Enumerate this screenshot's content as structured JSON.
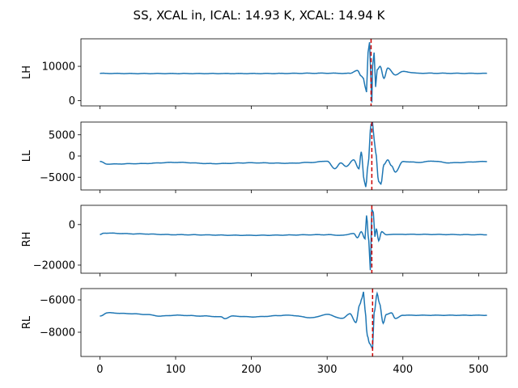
{
  "title": "SS, XCAL in, ICAL: 14.93 K, XCAL: 14.94 K",
  "chart_data": [
    {
      "type": "line",
      "ylabel": "LH",
      "xlim": [
        -25,
        537
      ],
      "ylim": [
        -1500,
        18000
      ],
      "yticks": [
        0,
        10000
      ],
      "ytick_labels": [
        "0",
        "10000"
      ],
      "baseline": 7950,
      "marker_x": 358,
      "series": [
        {
          "color": "#1f77b4",
          "keypoints": [
            [
              0,
              7950
            ],
            [
              50,
              7900
            ],
            [
              200,
              7900
            ],
            [
              300,
              8000
            ],
            [
              330,
              7950
            ],
            [
              340,
              8800
            ],
            [
              345,
              7200
            ],
            [
              348,
              6500
            ],
            [
              350,
              4200
            ],
            [
              352,
              2500
            ],
            [
              354,
              14000
            ],
            [
              356,
              17000
            ],
            [
              358,
              5000
            ],
            [
              359,
              -500
            ],
            [
              360,
              10000
            ],
            [
              362,
              14000
            ],
            [
              364,
              4000
            ],
            [
              366,
              9000
            ],
            [
              370,
              10000
            ],
            [
              375,
              6500
            ],
            [
              380,
              9500
            ],
            [
              390,
              7500
            ],
            [
              400,
              8500
            ],
            [
              420,
              8000
            ],
            [
              512,
              7950
            ]
          ]
        }
      ],
      "marker_color": "#cc0000"
    },
    {
      "type": "line",
      "ylabel": "LL",
      "xlim": [
        -25,
        537
      ],
      "ylim": [
        -8000,
        8000
      ],
      "yticks": [
        5000,
        0,
        -5000
      ],
      "ytick_labels": [
        "5000",
        "0",
        "−5000"
      ],
      "baseline": -1400,
      "marker_x": 359,
      "series": [
        {
          "color": "#1f77b4",
          "keypoints": [
            [
              0,
              -1300
            ],
            [
              10,
              -1900
            ],
            [
              50,
              -1800
            ],
            [
              100,
              -1500
            ],
            [
              150,
              -1800
            ],
            [
              200,
              -1600
            ],
            [
              250,
              -1700
            ],
            [
              280,
              -1500
            ],
            [
              300,
              -1200
            ],
            [
              310,
              -3000
            ],
            [
              318,
              -1600
            ],
            [
              325,
              -2500
            ],
            [
              335,
              -900
            ],
            [
              342,
              -3000
            ],
            [
              345,
              1000
            ],
            [
              349,
              -5800
            ],
            [
              351,
              -7300
            ],
            [
              354,
              -2000
            ],
            [
              358,
              7500
            ],
            [
              360,
              7800
            ],
            [
              362,
              4000
            ],
            [
              364,
              1000
            ],
            [
              368,
              -6000
            ],
            [
              371,
              -6600
            ],
            [
              375,
              -2000
            ],
            [
              380,
              -900
            ],
            [
              385,
              -2300
            ],
            [
              390,
              -3800
            ],
            [
              400,
              -1300
            ],
            [
              420,
              -1500
            ],
            [
              440,
              -1200
            ],
            [
              460,
              -1600
            ],
            [
              512,
              -1300
            ]
          ]
        }
      ],
      "marker_color": "#cc0000"
    },
    {
      "type": "line",
      "ylabel": "RH",
      "xlim": [
        -25,
        537
      ],
      "ylim": [
        -24000,
        9500
      ],
      "yticks": [
        0,
        -20000
      ],
      "ytick_labels": [
        "0",
        "−20000"
      ],
      "baseline": -5000,
      "marker_x": 359,
      "series": [
        {
          "color": "#1f77b4",
          "keypoints": [
            [
              0,
              -5000
            ],
            [
              5,
              -4200
            ],
            [
              50,
              -4600
            ],
            [
              100,
              -5000
            ],
            [
              200,
              -5300
            ],
            [
              300,
              -5000
            ],
            [
              320,
              -5300
            ],
            [
              335,
              -4400
            ],
            [
              340,
              -6500
            ],
            [
              345,
              -3500
            ],
            [
              350,
              -7000
            ],
            [
              352,
              4500
            ],
            [
              355,
              -8000
            ],
            [
              357,
              -22500
            ],
            [
              358,
              -8000
            ],
            [
              359,
              7500
            ],
            [
              361,
              6000
            ],
            [
              363,
              -6000
            ],
            [
              365,
              -2000
            ],
            [
              368,
              -8000
            ],
            [
              372,
              -3500
            ],
            [
              378,
              -5000
            ],
            [
              390,
              -4800
            ],
            [
              512,
              -5000
            ]
          ]
        }
      ],
      "marker_color": "#cc0000"
    },
    {
      "type": "line",
      "ylabel": "RL",
      "xlim": [
        -25,
        537
      ],
      "ylim": [
        -9500,
        -5300
      ],
      "yticks": [
        -6000,
        -8000
      ],
      "ytick_labels": [
        "−6000",
        "−8000"
      ],
      "baseline": -6950,
      "marker_x": 360,
      "series": [
        {
          "color": "#1f77b4",
          "keypoints": [
            [
              0,
              -7000
            ],
            [
              10,
              -6800
            ],
            [
              40,
              -6850
            ],
            [
              60,
              -6900
            ],
            [
              80,
              -7000
            ],
            [
              100,
              -6950
            ],
            [
              140,
              -7000
            ],
            [
              160,
              -7050
            ],
            [
              165,
              -7150
            ],
            [
              175,
              -7000
            ],
            [
              200,
              -7050
            ],
            [
              250,
              -6950
            ],
            [
              280,
              -7100
            ],
            [
              300,
              -6900
            ],
            [
              320,
              -7150
            ],
            [
              330,
              -6850
            ],
            [
              338,
              -7400
            ],
            [
              343,
              -6300
            ],
            [
              346,
              -5900
            ],
            [
              348,
              -5500
            ],
            [
              350,
              -6600
            ],
            [
              353,
              -8200
            ],
            [
              356,
              -8700
            ],
            [
              360,
              -9000
            ],
            [
              362,
              -6800
            ],
            [
              366,
              -5600
            ],
            [
              369,
              -6200
            ],
            [
              374,
              -7450
            ],
            [
              378,
              -6900
            ],
            [
              385,
              -6800
            ],
            [
              390,
              -7150
            ],
            [
              400,
              -6950
            ],
            [
              512,
              -6950
            ]
          ]
        }
      ],
      "marker_color": "#cc0000"
    }
  ],
  "x_axis": {
    "ticks": [
      0,
      100,
      200,
      300,
      400,
      500
    ],
    "tick_labels": [
      "0",
      "100",
      "200",
      "300",
      "400",
      "500"
    ]
  }
}
